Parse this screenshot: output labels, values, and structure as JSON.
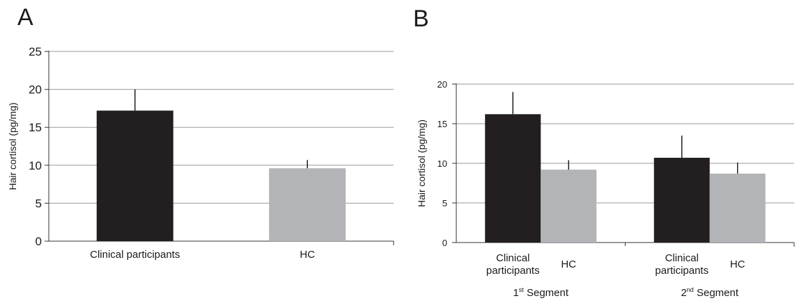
{
  "chart_data": [
    {
      "panel_label": "A",
      "type": "bar",
      "ylabel": "Hair cortisol (pg/mg)",
      "ylim": [
        0,
        25
      ],
      "yticks": [
        0,
        5,
        10,
        15,
        20,
        25
      ],
      "grid": true,
      "categories": [
        "Clinical participants",
        "HC"
      ],
      "values": [
        17.2,
        9.6
      ],
      "errors": [
        2.8,
        1.1
      ],
      "colors": [
        "#231f20",
        "#b3b4b8"
      ]
    },
    {
      "panel_label": "B",
      "type": "bar",
      "ylabel": "Hair cortisol (pg/mg)",
      "ylim": [
        0,
        20
      ],
      "yticks": [
        0,
        5,
        10,
        15,
        20
      ],
      "grid": true,
      "groups": [
        {
          "label_main": "1",
          "label_sup": "st",
          "label_rest": " Segment"
        },
        {
          "label_main": "2",
          "label_sup": "nd",
          "label_rest": " Segment"
        }
      ],
      "series": [
        {
          "label_lines": [
            "Clinical",
            "participants"
          ],
          "values": [
            16.2,
            10.7
          ],
          "errors": [
            2.8,
            2.8
          ],
          "color": "#231f20"
        },
        {
          "label_lines": [
            "HC"
          ],
          "values": [
            9.2,
            8.7
          ],
          "errors": [
            1.2,
            1.4
          ],
          "color": "#b3b4b8"
        }
      ]
    }
  ]
}
